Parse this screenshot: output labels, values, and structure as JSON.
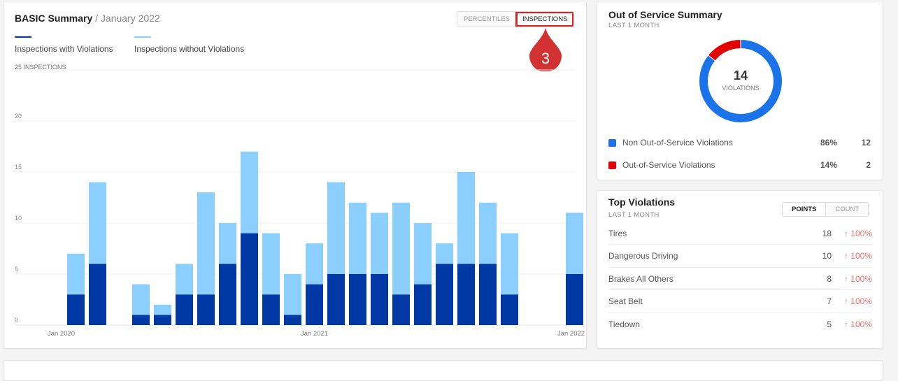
{
  "basic": {
    "title": "BASIC Summary",
    "period": "/ January 2022",
    "toggle": [
      "PERCENTILES",
      "INSPECTIONS"
    ],
    "active": "INSPECTIONS",
    "callout": "3"
  },
  "chart_data": {
    "type": "bar",
    "stacked": true,
    "ylabel": "25 INSPECTIONS",
    "ylim": [
      0,
      25
    ],
    "yticks": [
      0,
      5,
      10,
      15,
      20
    ],
    "xtick_labels": [
      {
        "index": 0,
        "label": "Jan 2020"
      },
      {
        "index": 12,
        "label": "Jan 2021"
      },
      {
        "index": 24,
        "label": "Jan 2022"
      }
    ],
    "series": [
      {
        "name": "Inspections with Violations",
        "color": "#0039a6",
        "values": [
          0,
          3,
          6,
          0,
          1,
          1,
          3,
          3,
          6,
          9,
          3,
          1,
          4,
          5,
          5,
          5,
          3,
          4,
          6,
          6,
          6,
          3,
          0,
          0,
          5
        ]
      },
      {
        "name": "Inspections without Violations",
        "color": "#8acfff",
        "values": [
          0,
          4,
          8,
          0,
          3,
          1,
          3,
          10,
          4,
          8,
          6,
          4,
          4,
          9,
          7,
          6,
          9,
          6,
          2,
          9,
          6,
          6,
          0,
          0,
          6
        ]
      }
    ],
    "grid": true,
    "legend": "top-left"
  },
  "oos": {
    "title": "Out of Service Summary",
    "subtitle": "LAST 1 MONTH",
    "total": "14",
    "total_label": "VIOLATIONS",
    "items": [
      {
        "label": "Non Out-of-Service Violations",
        "pct": "86%",
        "count": "12",
        "color": "#1a73e8",
        "value": 12
      },
      {
        "label": "Out-of-Service Violations",
        "pct": "14%",
        "count": "2",
        "color": "#e30000",
        "value": 2
      }
    ]
  },
  "top": {
    "title": "Top Violations",
    "subtitle": "LAST 1 MONTH",
    "toggle": [
      "POINTS",
      "COUNT"
    ],
    "rows": [
      {
        "name": "Tires",
        "value": "18",
        "change": "↑ 100%"
      },
      {
        "name": "Dangerous Driving",
        "value": "10",
        "change": "↑ 100%"
      },
      {
        "name": "Brakes All Others",
        "value": "8",
        "change": "↑ 100%"
      },
      {
        "name": "Seat Belt",
        "value": "7",
        "change": "↑ 100%"
      },
      {
        "name": "Tiedown",
        "value": "5",
        "change": "↑ 100%"
      }
    ]
  }
}
